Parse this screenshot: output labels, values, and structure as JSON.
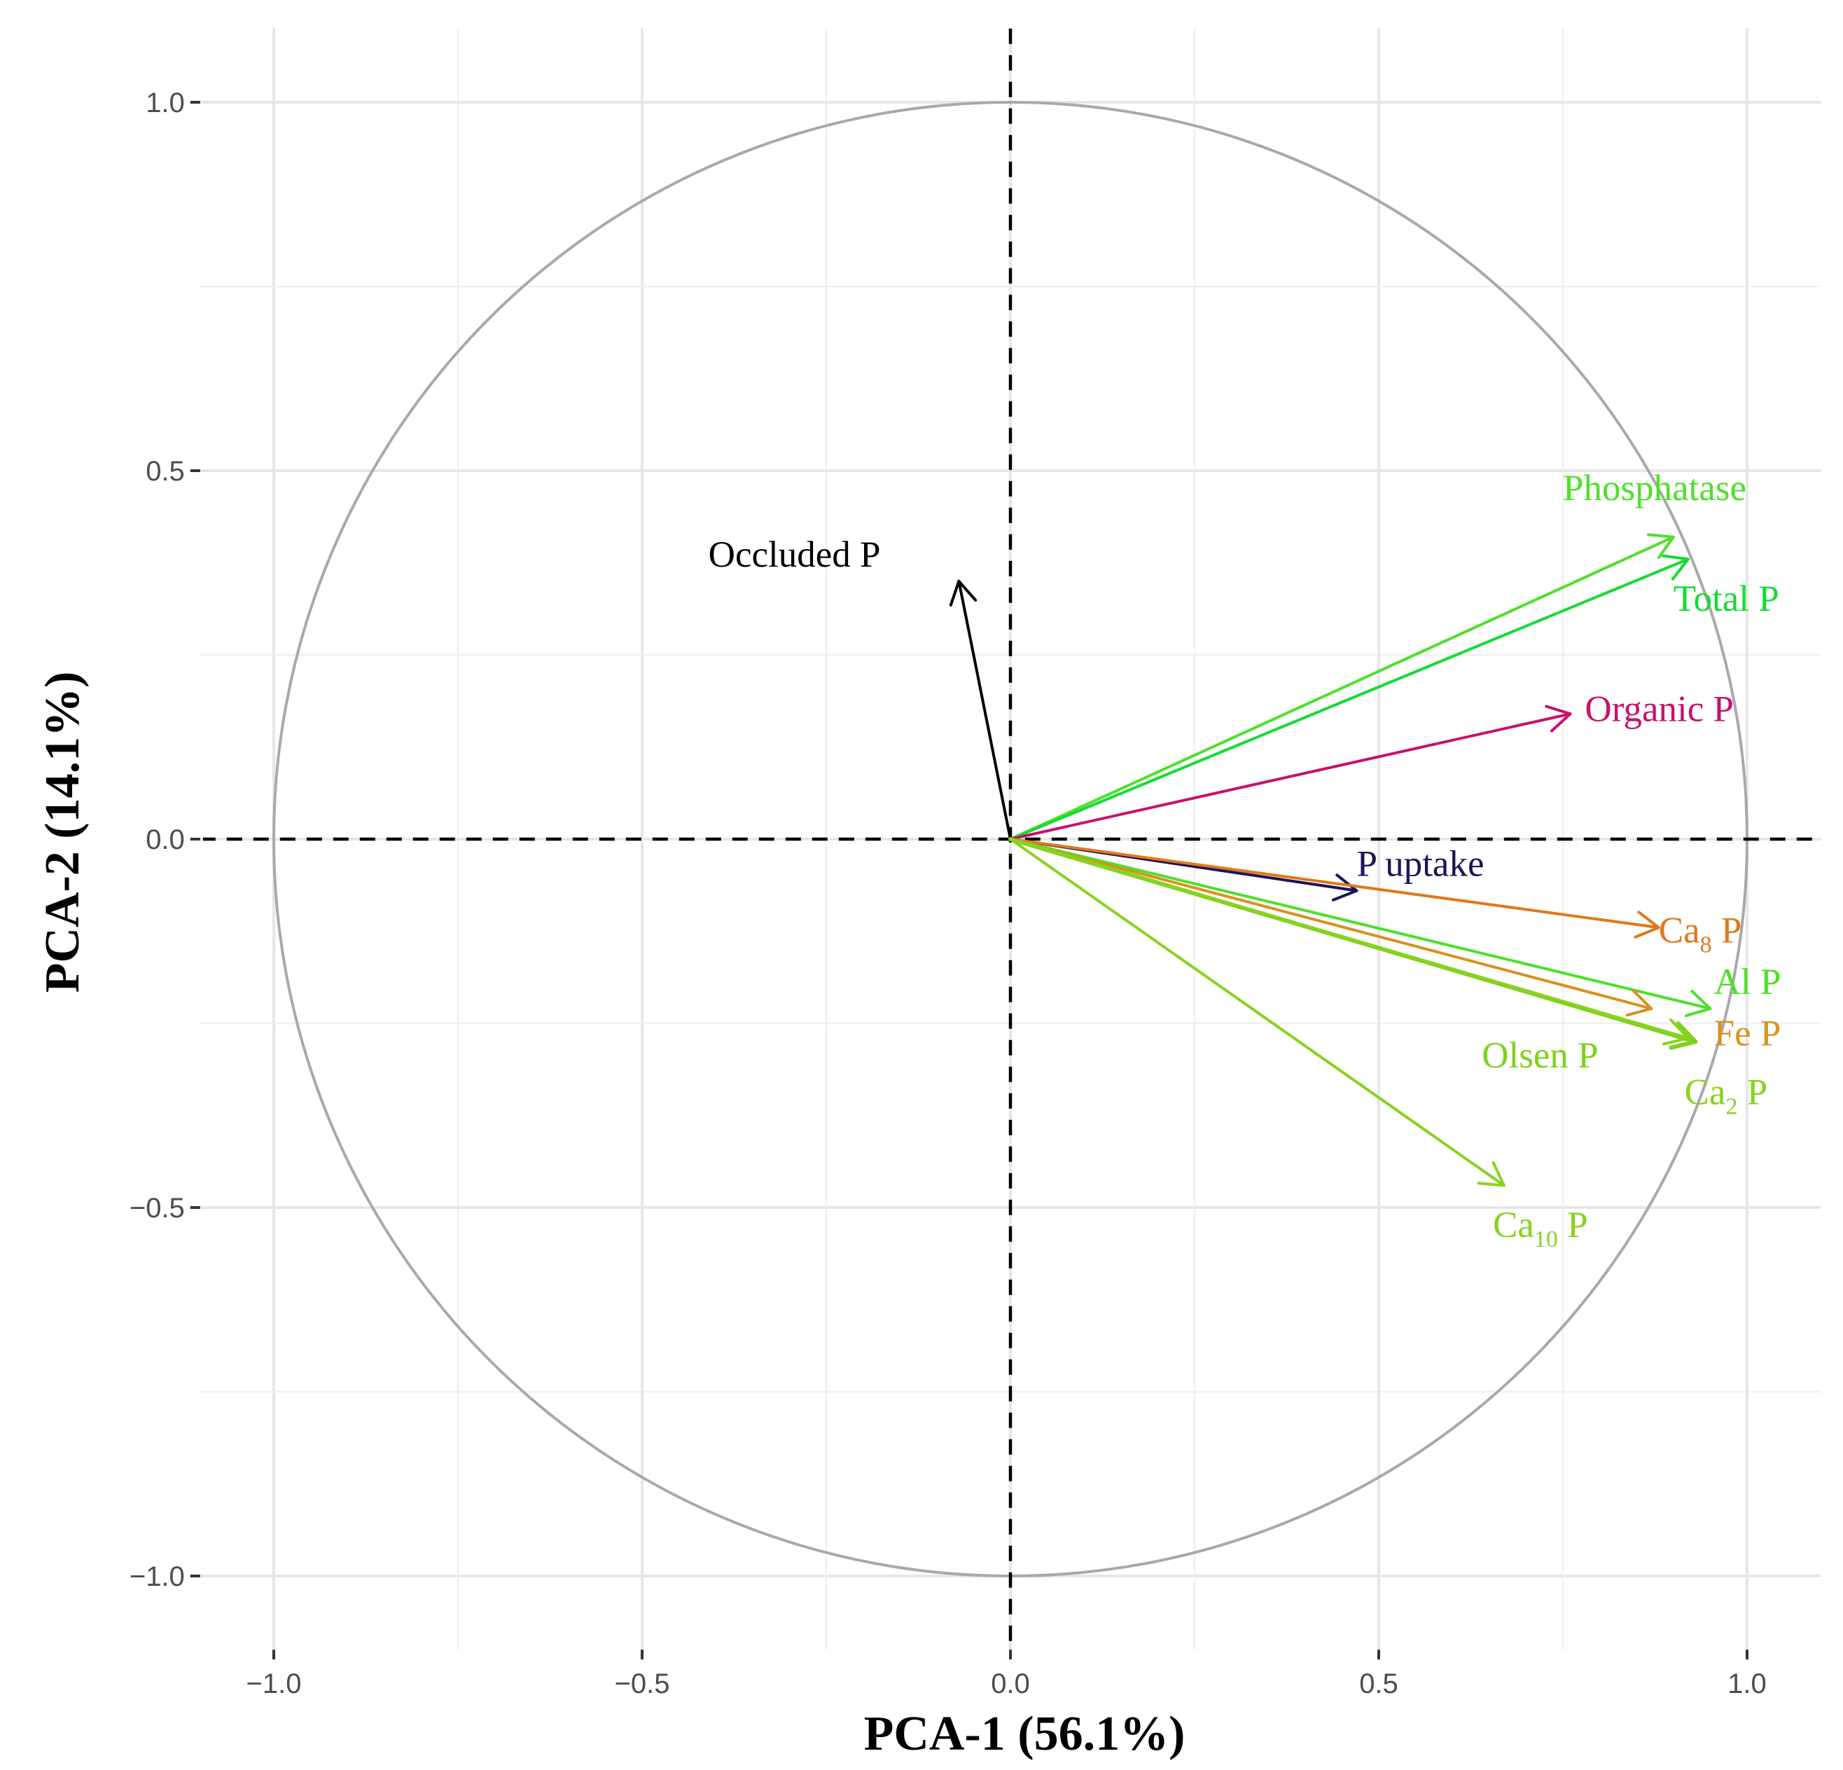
{
  "chart_data": {
    "type": "scatter",
    "subtype": "pca-correlation-circle",
    "title": "",
    "xlabel": "PCA-1 (56.1%)",
    "ylabel": "PCA-2 (14.1%)",
    "xlim": [
      -1.1,
      1.1
    ],
    "ylim": [
      -1.1,
      1.1
    ],
    "xticks": [
      -1.0,
      -0.5,
      0.0,
      0.5,
      1.0
    ],
    "xtick_labels": [
      "−1.0",
      "−0.5",
      "0.0",
      "0.5",
      "1.0"
    ],
    "yticks": [
      -1.0,
      -0.5,
      0.0,
      0.5,
      1.0
    ],
    "ytick_labels": [
      "−1.0",
      "−0.5",
      "0.0",
      "0.5",
      "1.0"
    ],
    "grid": true,
    "circle_radius": 1.0,
    "vectors": [
      {
        "name": "Phosphatase",
        "x": 0.9,
        "y": 0.41,
        "color": "#4ee02a",
        "label": {
          "text": "Phosphatase",
          "sub": "",
          "suffix": "",
          "x": 0.75,
          "y": 0.46
        }
      },
      {
        "name": "Total P",
        "x": 0.92,
        "y": 0.38,
        "color": "#14dc32",
        "label": {
          "text": "Total P",
          "sub": "",
          "suffix": "",
          "x": 0.9,
          "y": 0.31
        }
      },
      {
        "name": "Organic P",
        "x": 0.76,
        "y": 0.17,
        "color": "#c8106e",
        "label": {
          "text": "Organic P",
          "sub": "",
          "suffix": "",
          "x": 0.78,
          "y": 0.16
        }
      },
      {
        "name": "Occluded P",
        "x": -0.07,
        "y": 0.35,
        "color": "#000000",
        "label": {
          "text": "Occluded P",
          "sub": "",
          "suffix": "",
          "x": -0.41,
          "y": 0.37
        }
      },
      {
        "name": "P uptake",
        "x": 0.47,
        "y": -0.07,
        "color": "#1c1458",
        "label": {
          "text": "P uptake",
          "sub": "",
          "suffix": "",
          "x": 0.47,
          "y": -0.05
        }
      },
      {
        "name": "Ca8 P",
        "x": 0.88,
        "y": -0.12,
        "color": "#e07818",
        "label": {
          "text": "Ca",
          "sub": "8",
          "suffix": " P",
          "x": 0.88,
          "y": -0.14
        }
      },
      {
        "name": "Al P",
        "x": 0.95,
        "y": -0.23,
        "color": "#4ee02a",
        "label": {
          "text": "Al P",
          "sub": "",
          "suffix": "",
          "x": 0.955,
          "y": -0.21
        }
      },
      {
        "name": "Fe P",
        "x": 0.87,
        "y": -0.23,
        "color": "#d8921e",
        "label": {
          "text": "Fe P",
          "sub": "",
          "suffix": "",
          "x": 0.955,
          "y": -0.28
        }
      },
      {
        "name": "Olsen P",
        "x": 0.93,
        "y": -0.275,
        "color": "#7dd21e",
        "width": 3,
        "label": {
          "text": "Olsen P",
          "sub": "",
          "suffix": "",
          "x": 0.64,
          "y": -0.31
        }
      },
      {
        "name": "Ca2 P",
        "x": 0.92,
        "y": -0.27,
        "color": "#8ad21e",
        "label": {
          "text": "Ca",
          "sub": "2",
          "suffix": " P",
          "x": 0.915,
          "y": -0.36
        }
      },
      {
        "name": "Ca10 P",
        "x": 0.67,
        "y": -0.47,
        "color": "#8ad21e",
        "label": {
          "text": "Ca",
          "sub": "10",
          "suffix": " P",
          "x": 0.655,
          "y": -0.54
        }
      }
    ]
  }
}
